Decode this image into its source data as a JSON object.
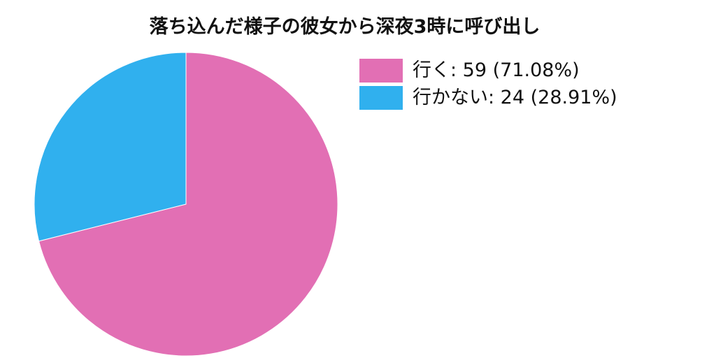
{
  "chart_data": {
    "type": "pie",
    "title": "落ち込んだ様子の彼女から深夜3時に呼び出し",
    "slices": [
      {
        "label": "行く",
        "value": 59,
        "percent": 71.08,
        "color": "#E26FB4",
        "legend_text": "行く: 59 (71.08%)"
      },
      {
        "label": "行かない",
        "value": 24,
        "percent": 28.91,
        "color": "#30B0EE",
        "legend_text": "行かない: 24 (28.91%)"
      }
    ],
    "legend_position": "top-right",
    "start_angle": "12 o'clock",
    "direction": "clockwise"
  }
}
